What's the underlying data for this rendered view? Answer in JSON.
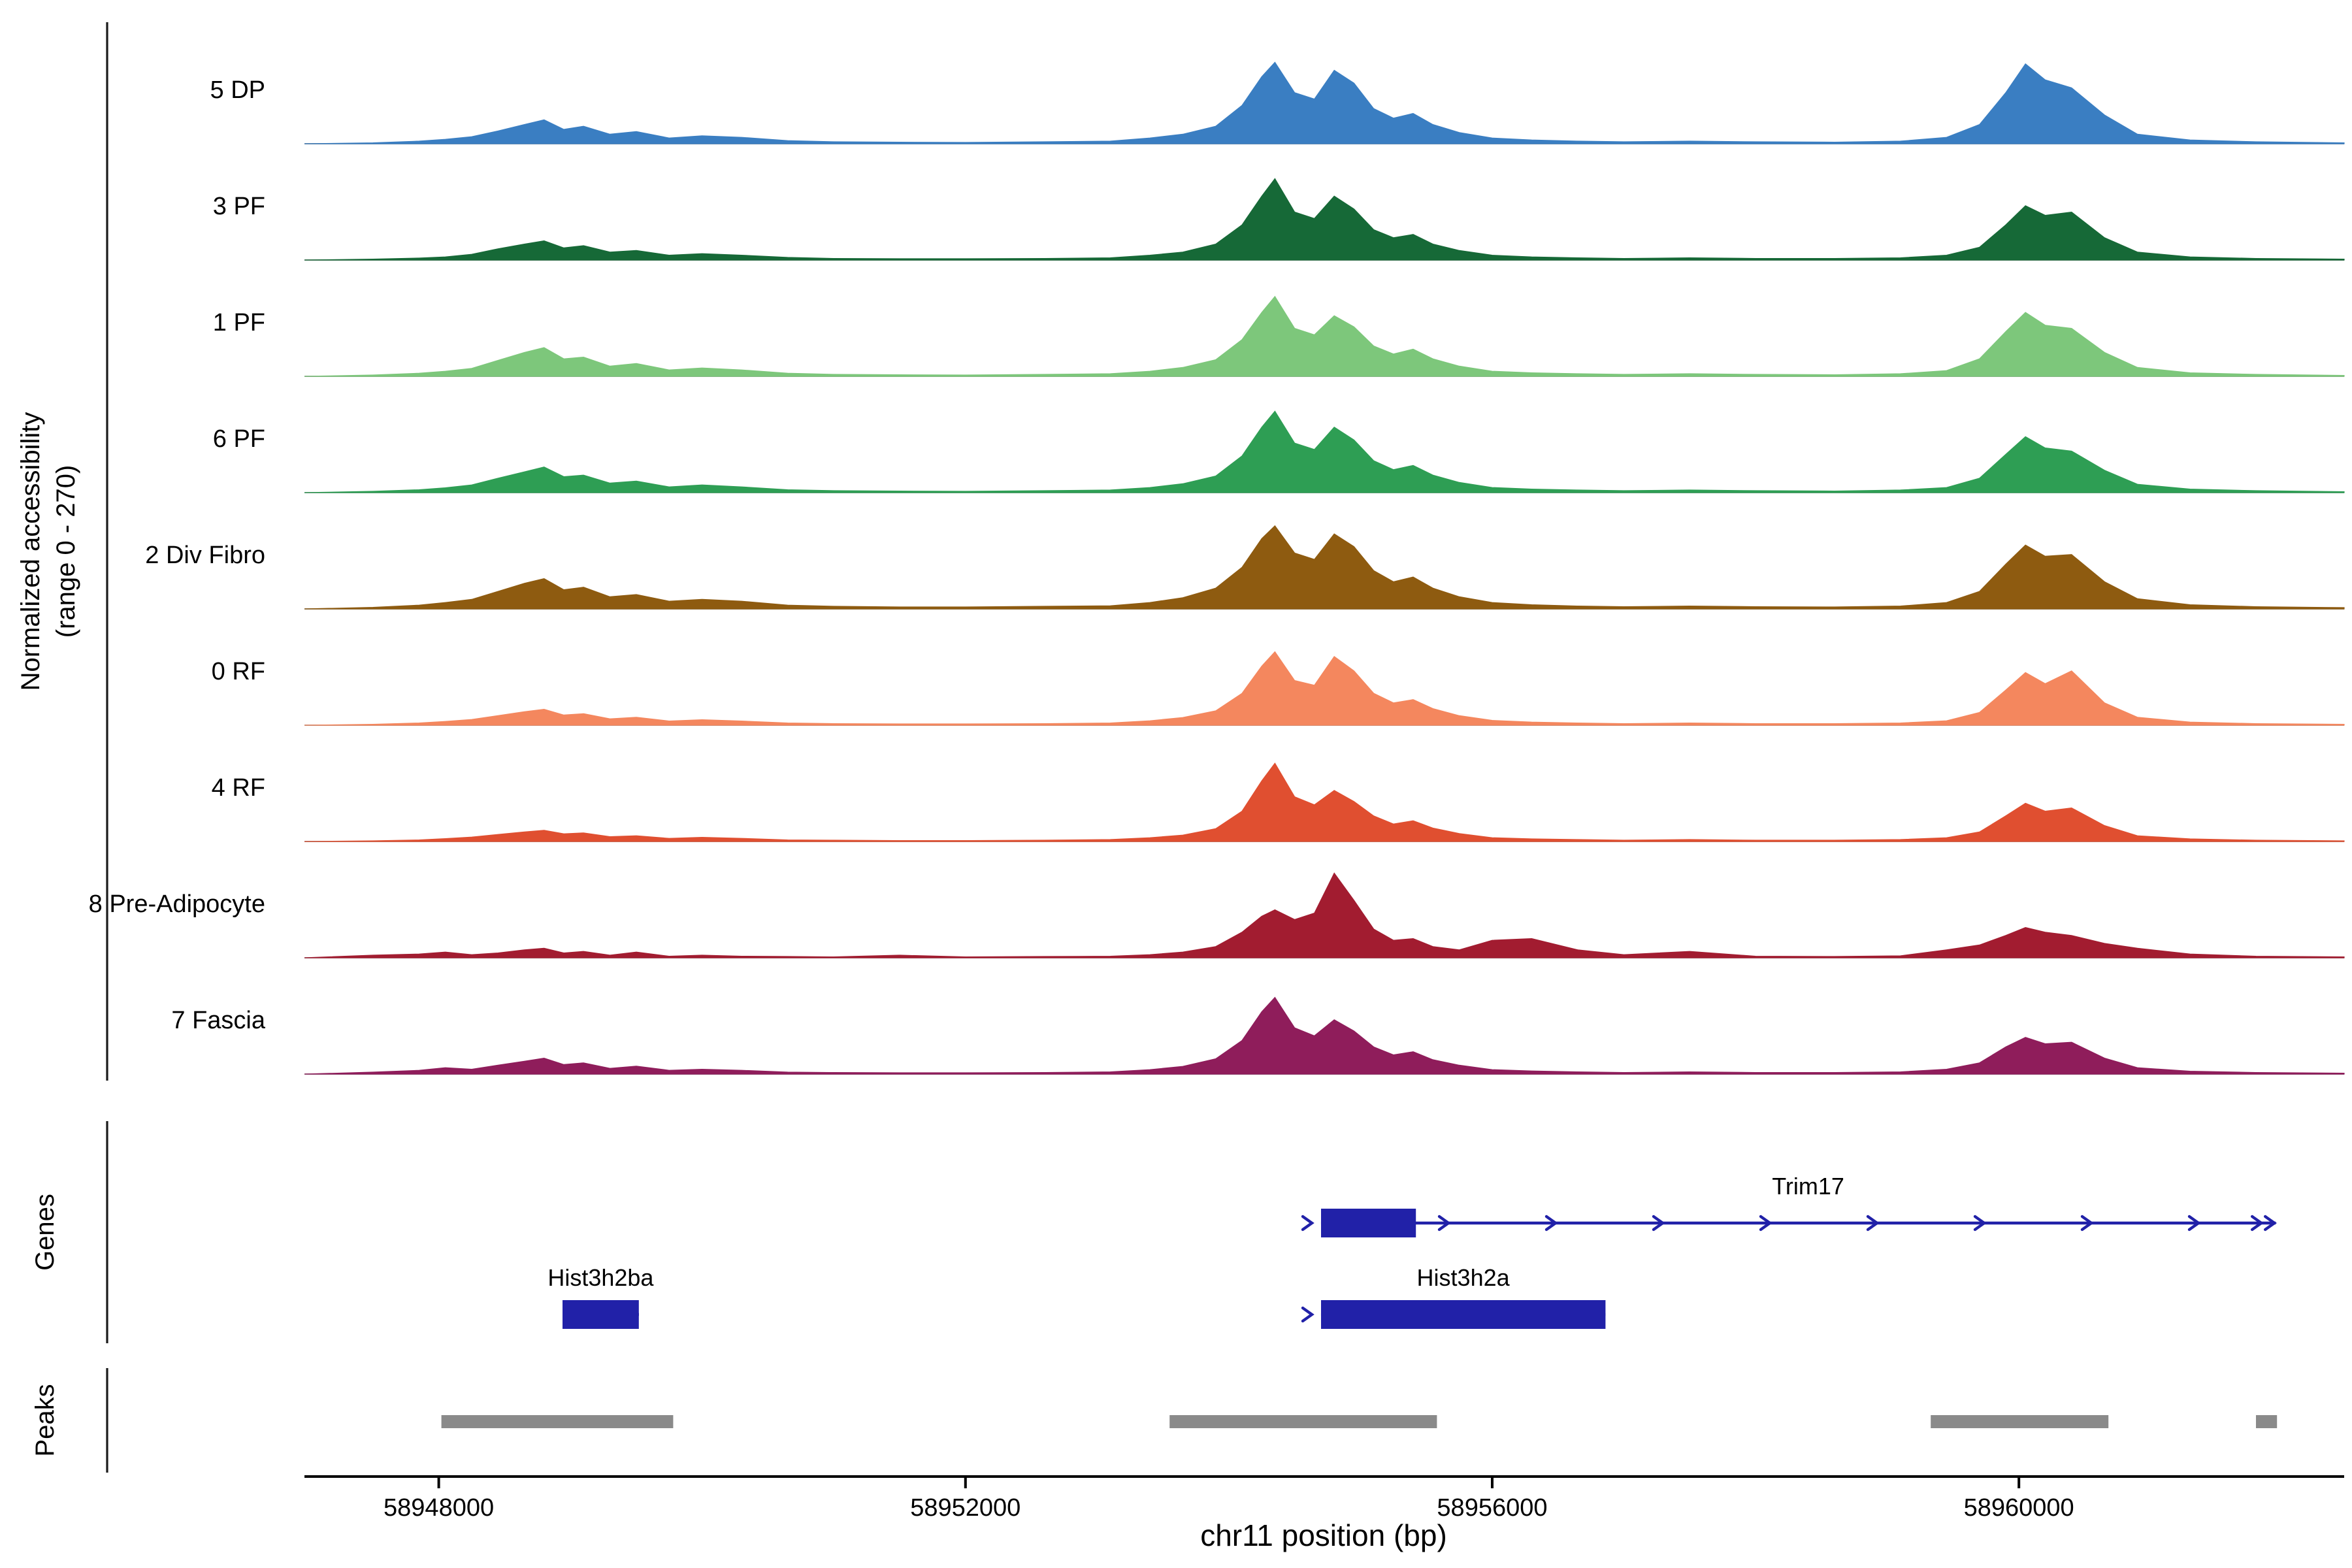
{
  "figure": {
    "y_axis_label_line1": "Normalized accessibility",
    "y_axis_label_line2": "(range 0 - 270)",
    "genes_section_label": "Genes",
    "peaks_section_label": "Peaks",
    "x_axis_label": "chr11 position (bp)"
  },
  "chart_data": {
    "type": "area",
    "title": "",
    "xlabel": "chr11 position (bp)",
    "ylabel": "Normalized accessibility (range 0 - 270)",
    "xlim": [
      58946980,
      58962470
    ],
    "ylim_per_track": [
      0,
      270
    ],
    "x_ticks": [
      {
        "bp": 58948000,
        "label": "58948000"
      },
      {
        "bp": 58952000,
        "label": "58952000"
      },
      {
        "bp": 58956000,
        "label": "58956000"
      },
      {
        "bp": 58960000,
        "label": "58960000"
      }
    ],
    "x_bp": [
      58946980,
      58947500,
      58947850,
      58948050,
      58948250,
      58948450,
      58948650,
      58948800,
      58948950,
      58949100,
      58949300,
      58949500,
      58949750,
      58950000,
      58950300,
      58950650,
      58951000,
      58951500,
      58952000,
      58952600,
      58953100,
      58953400,
      58953650,
      58953900,
      58954100,
      58954250,
      58954350,
      58954500,
      58954650,
      58954800,
      58954950,
      58955100,
      58955250,
      58955400,
      58955550,
      58955750,
      58956000,
      58956300,
      58956650,
      58957000,
      58957500,
      58958000,
      58958600,
      58959100,
      58959450,
      58959700,
      58959900,
      58960050,
      58960200,
      58960400,
      58960650,
      58960900,
      58961300,
      58961800,
      58962470
    ],
    "tracks": [
      {
        "label": "5 DP",
        "color": "#3A7EC2",
        "values": [
          0,
          3,
          8,
          14,
          22,
          40,
          60,
          75,
          45,
          55,
          30,
          38,
          18,
          25,
          20,
          10,
          6,
          5,
          4,
          6,
          8,
          18,
          30,
          55,
          120,
          210,
          255,
          160,
          140,
          230,
          190,
          110,
          80,
          95,
          60,
          35,
          18,
          12,
          8,
          6,
          8,
          6,
          5,
          8,
          20,
          60,
          160,
          250,
          200,
          175,
          90,
          30,
          12,
          6,
          3
        ]
      },
      {
        "label": "3 PF",
        "color": "#166937",
        "values": [
          0,
          3,
          6,
          10,
          18,
          35,
          50,
          60,
          38,
          45,
          25,
          30,
          15,
          20,
          15,
          8,
          5,
          4,
          4,
          5,
          7,
          15,
          25,
          50,
          110,
          200,
          255,
          150,
          130,
          200,
          160,
          95,
          70,
          80,
          50,
          30,
          15,
          10,
          7,
          5,
          7,
          5,
          5,
          7,
          15,
          40,
          110,
          170,
          140,
          150,
          70,
          25,
          10,
          5,
          3
        ]
      },
      {
        "label": "1 PF",
        "color": "#7DC77B",
        "values": [
          0,
          4,
          10,
          16,
          25,
          50,
          75,
          90,
          55,
          60,
          32,
          40,
          20,
          26,
          20,
          10,
          6,
          5,
          4,
          6,
          8,
          16,
          28,
          52,
          115,
          200,
          250,
          150,
          130,
          190,
          155,
          95,
          70,
          85,
          55,
          32,
          16,
          11,
          8,
          6,
          8,
          6,
          5,
          8,
          18,
          55,
          140,
          200,
          160,
          150,
          75,
          28,
          11,
          6,
          3
        ]
      },
      {
        "label": "6 PF",
        "color": "#2E9E54",
        "values": [
          0,
          4,
          9,
          15,
          24,
          45,
          65,
          80,
          50,
          55,
          30,
          36,
          18,
          24,
          18,
          9,
          6,
          5,
          4,
          6,
          8,
          16,
          28,
          52,
          115,
          205,
          255,
          155,
          135,
          205,
          165,
          100,
          72,
          85,
          55,
          32,
          16,
          11,
          8,
          6,
          8,
          6,
          5,
          8,
          16,
          45,
          120,
          175,
          140,
          130,
          70,
          26,
          11,
          6,
          3
        ]
      },
      {
        "label": "2 Div Fibro",
        "color": "#8E5B10",
        "values": [
          0,
          5,
          12,
          20,
          30,
          55,
          80,
          95,
          60,
          68,
          38,
          45,
          24,
          30,
          24,
          12,
          8,
          6,
          6,
          8,
          10,
          20,
          35,
          65,
          130,
          220,
          260,
          175,
          155,
          235,
          195,
          120,
          85,
          100,
          65,
          38,
          20,
          13,
          9,
          7,
          9,
          7,
          6,
          9,
          20,
          55,
          140,
          200,
          165,
          170,
          85,
          32,
          13,
          7,
          4
        ]
      },
      {
        "label": "0 RF",
        "color": "#F4875E",
        "values": [
          0,
          3,
          7,
          12,
          18,
          30,
          42,
          50,
          32,
          36,
          20,
          25,
          13,
          17,
          13,
          7,
          5,
          4,
          4,
          5,
          7,
          14,
          24,
          45,
          100,
          185,
          230,
          140,
          125,
          215,
          170,
          100,
          70,
          80,
          52,
          30,
          15,
          10,
          7,
          5,
          7,
          5,
          5,
          7,
          14,
          40,
          110,
          165,
          130,
          170,
          70,
          25,
          10,
          5,
          3
        ]
      },
      {
        "label": "4 RF",
        "color": "#E04F30",
        "values": [
          0,
          2,
          5,
          9,
          14,
          22,
          30,
          35,
          24,
          27,
          15,
          18,
          10,
          13,
          10,
          5,
          4,
          3,
          3,
          4,
          6,
          12,
          20,
          40,
          95,
          190,
          245,
          140,
          115,
          160,
          125,
          80,
          55,
          65,
          42,
          25,
          12,
          8,
          6,
          4,
          6,
          4,
          4,
          6,
          12,
          30,
          80,
          120,
          95,
          105,
          50,
          18,
          8,
          4,
          2
        ]
      },
      {
        "label": "8 Pre-Adipocyte",
        "color": "#A21C30",
        "values": [
          0,
          8,
          12,
          18,
          10,
          15,
          25,
          30,
          15,
          20,
          8,
          18,
          5,
          8,
          5,
          4,
          3,
          8,
          3,
          4,
          5,
          10,
          18,
          35,
          80,
          130,
          150,
          120,
          140,
          265,
          180,
          90,
          55,
          60,
          35,
          25,
          55,
          60,
          25,
          10,
          20,
          5,
          4,
          6,
          25,
          40,
          70,
          95,
          80,
          70,
          45,
          30,
          12,
          5,
          3
        ]
      },
      {
        "label": "7 Fascia",
        "color": "#8F1D5B",
        "values": [
          0,
          6,
          12,
          20,
          15,
          28,
          40,
          50,
          30,
          35,
          18,
          25,
          12,
          15,
          12,
          6,
          5,
          4,
          4,
          5,
          7,
          14,
          24,
          48,
          105,
          195,
          240,
          145,
          120,
          170,
          135,
          85,
          60,
          70,
          45,
          28,
          14,
          10,
          7,
          5,
          7,
          5,
          5,
          7,
          15,
          35,
          85,
          115,
          95,
          100,
          50,
          20,
          9,
          5,
          3
        ]
      }
    ],
    "genes": [
      {
        "name": "Trim17",
        "row": 1,
        "start": 58954700,
        "end": 58961950,
        "exons": [
          [
            58954700,
            58955420
          ]
        ],
        "strand_arrows": "line",
        "start_arrow": true,
        "label_bp": 58958400
      },
      {
        "name": "Hist3h2a",
        "row": 2,
        "start": 58954700,
        "end": 58956860,
        "exons": [
          [
            58954700,
            58956860
          ]
        ],
        "strand_arrows": "none",
        "start_arrow": true,
        "label_bp": 58955780
      },
      {
        "name": "Hist3h2ba",
        "row": 2,
        "start": 58948940,
        "end": 58949520,
        "exons": [
          [
            58948940,
            58949520
          ]
        ],
        "strand_arrows": "none",
        "start_arrow": false,
        "label_bp": 58949230
      }
    ],
    "peaks": [
      [
        58948020,
        58949780
      ],
      [
        58953550,
        58955580
      ],
      [
        58959330,
        58960680
      ],
      [
        58961800,
        58961960
      ]
    ],
    "colors": {
      "gene": "#2121A8",
      "peak": "#8A8A8A",
      "baseline": "#999999",
      "axis": "#000000"
    }
  }
}
